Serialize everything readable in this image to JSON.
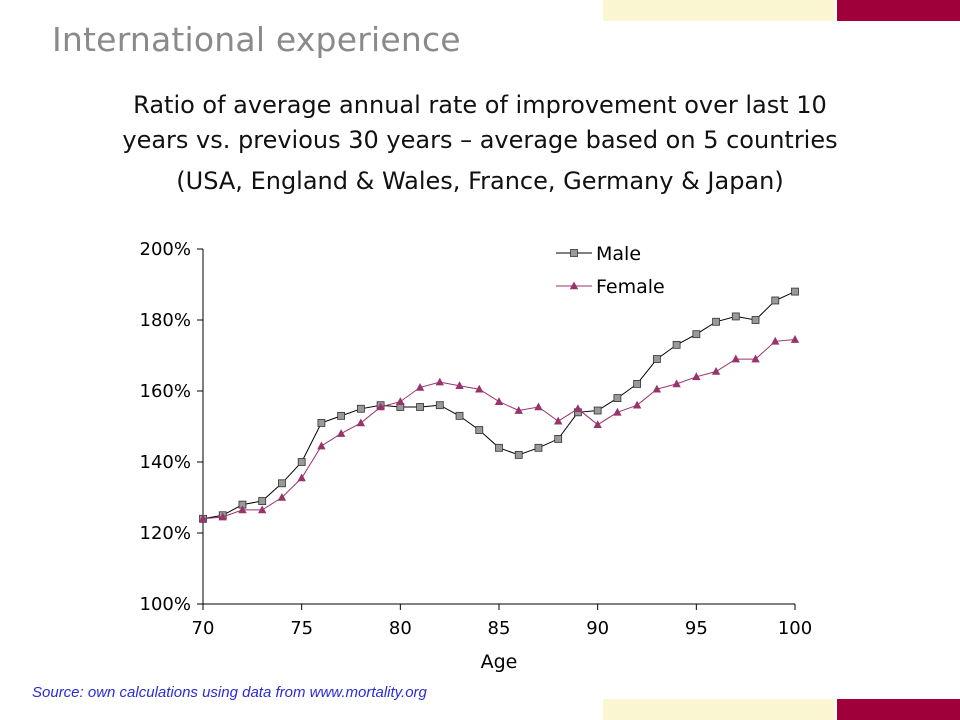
{
  "slide": {
    "title": "International experience",
    "subtitle_lines": [
      "Ratio of average annual rate of improvement over last 10",
      "years vs. previous 30 years – average based on 5 countries",
      "(USA, England & Wales, France, Germany & Japan)"
    ],
    "source": "Source: own calculations using data from www.mortality.org",
    "accent_color": "#a0003a",
    "accent_light_color": "#fbf6d2"
  },
  "chart_data": {
    "type": "line",
    "title": "",
    "xlabel": "Age",
    "ylabel": "",
    "xlim": [
      70,
      100
    ],
    "ylim": [
      1.0,
      2.0
    ],
    "x_ticks": [
      70,
      75,
      80,
      85,
      90,
      95,
      100
    ],
    "x_tick_labels": [
      "70",
      "75",
      "80",
      "85",
      "90",
      "95",
      "100"
    ],
    "y_ticks": [
      1.0,
      1.2,
      1.4,
      1.6,
      1.8,
      2.0
    ],
    "y_tick_labels": [
      "100%",
      "120%",
      "140%",
      "160%",
      "180%",
      "200%"
    ],
    "grid": false,
    "legend_position": "top-right",
    "x": [
      70,
      71,
      72,
      73,
      74,
      75,
      76,
      77,
      78,
      79,
      80,
      81,
      82,
      83,
      84,
      85,
      86,
      87,
      88,
      89,
      90,
      91,
      92,
      93,
      94,
      95,
      96,
      97,
      98,
      99,
      100
    ],
    "series": [
      {
        "name": "Male",
        "marker": "square",
        "color": "#000000",
        "marker_color": "#999999",
        "values": [
          1.24,
          1.25,
          1.28,
          1.29,
          1.34,
          1.4,
          1.51,
          1.53,
          1.55,
          1.56,
          1.555,
          1.555,
          1.56,
          1.53,
          1.49,
          1.44,
          1.42,
          1.44,
          1.465,
          1.54,
          1.545,
          1.58,
          1.62,
          1.69,
          1.73,
          1.76,
          1.795,
          1.81,
          1.8,
          1.855,
          1.88
        ]
      },
      {
        "name": "Female",
        "marker": "triangle",
        "color": "#99336b",
        "marker_color": "#99336b",
        "values": [
          1.24,
          1.245,
          1.265,
          1.265,
          1.3,
          1.355,
          1.445,
          1.48,
          1.51,
          1.555,
          1.57,
          1.61,
          1.625,
          1.615,
          1.605,
          1.57,
          1.545,
          1.555,
          1.515,
          1.55,
          1.505,
          1.54,
          1.56,
          1.605,
          1.62,
          1.64,
          1.655,
          1.69,
          1.69,
          1.74,
          1.745
        ]
      }
    ]
  }
}
